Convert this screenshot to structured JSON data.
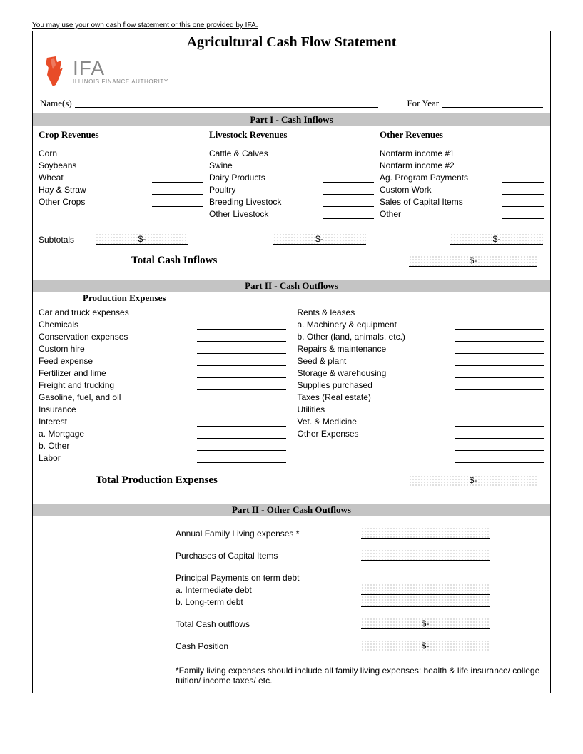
{
  "top_note": "You may use your own cash flow statement or this one provided by IFA.",
  "title": "Agricultural Cash Flow Statement",
  "logo": {
    "ifa": "IFA",
    "sub": "ILLINOIS FINANCE AUTHORITY"
  },
  "name_row": {
    "names_label": "Name(s)",
    "year_label": "For Year"
  },
  "part1": {
    "head": "Part I - Cash Inflows",
    "crop": {
      "head": "Crop Revenues",
      "items": [
        "Corn",
        "Soybeans",
        "Wheat",
        "Hay & Straw",
        "Other Crops"
      ]
    },
    "livestock": {
      "head": "Livestock Revenues",
      "items": [
        "Cattle & Calves",
        "Swine",
        "Dairy Products",
        "Poultry",
        "Breeding Livestock",
        "Other Livestock"
      ]
    },
    "other": {
      "head": "Other Revenues",
      "items": [
        "Nonfarm income #1",
        "Nonfarm income #2",
        "Ag. Program Payments",
        "Custom Work",
        "Sales of Capital Items",
        "Other"
      ]
    },
    "subtotals_label": "Subtotals",
    "subtotal_val": "$-",
    "total_label": "Total Cash Inflows",
    "total_val": "$-"
  },
  "part2": {
    "head": "Part II - Cash Outflows",
    "prod_head": "Production Expenses",
    "left": [
      "Car and truck expenses",
      "Chemicals",
      "Conservation expenses",
      "Custom hire",
      "Feed expense",
      "Fertilizer and lime",
      "Freight and trucking",
      "Gasoline, fuel, and oil",
      "Insurance",
      "Interest",
      "a. Mortgage",
      "b. Other",
      "Labor"
    ],
    "right": [
      "Rents & leases",
      "a. Machinery & equipment",
      "b. Other (land, animals, etc.)",
      "Repairs & maintenance",
      "Seed & plant",
      "Storage & warehousing",
      "Supplies purchased",
      "Taxes (Real estate)",
      "Utilities",
      "Vet. & Medicine",
      "Other Expenses",
      "",
      ""
    ],
    "total_label": "Total Production Expenses",
    "total_val": "$-"
  },
  "part2b": {
    "head": "Part II - Other Cash Outflows",
    "rows": [
      {
        "label": "Annual Family Living expenses *",
        "dotted": true,
        "dollar": false
      },
      {
        "gap": true
      },
      {
        "label": "Purchases of Capital Items",
        "dotted": true,
        "dollar": false
      },
      {
        "gap": true
      },
      {
        "label": "Principal Payments on term debt",
        "dotted": false
      },
      {
        "label": "a. Intermediate debt",
        "dotted": true,
        "dollar": false
      },
      {
        "label": "b. Long-term debt",
        "dotted": true,
        "dollar": false
      },
      {
        "gap": true
      },
      {
        "label": "Total Cash outflows",
        "dotted": true,
        "dollar": true,
        "val": "$-"
      },
      {
        "gap": true
      },
      {
        "label": "Cash Position",
        "dotted": true,
        "dollar": true,
        "val": "$-"
      }
    ],
    "footnote": "*Family living expenses should include all family living expenses: health & life insurance/ college tuition/ income taxes/ etc."
  },
  "colors": {
    "section_bg": "#c4c4c4",
    "logo_red": "#e84c28",
    "logo_gray": "#888888"
  }
}
